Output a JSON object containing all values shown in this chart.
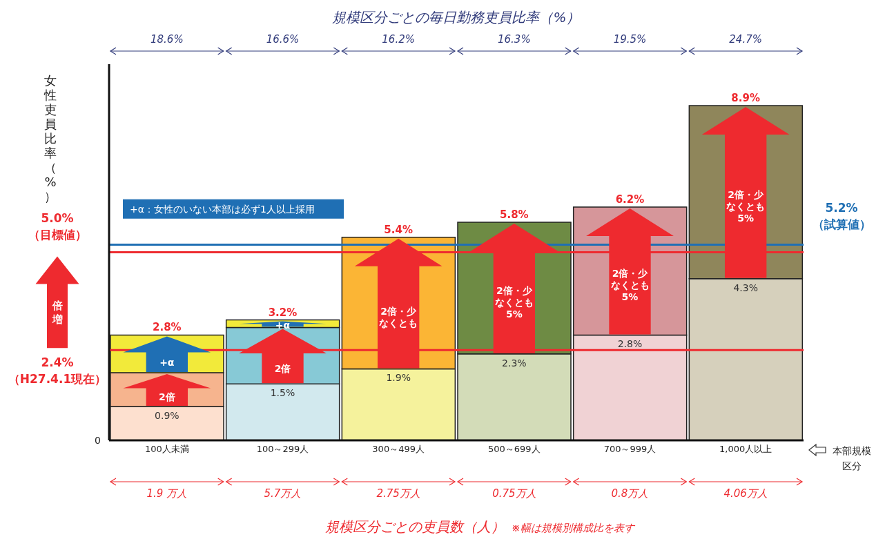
{
  "chart_data": {
    "type": "bar",
    "stacked": true,
    "title": "規模区分ごとの毎日勤務吏員比率（%）",
    "xlabel": "規模区分ごとの吏員数（人）",
    "ylabel": "女性吏員比率（%）",
    "categories": [
      "100人未満",
      "100～299人",
      "300～499人",
      "500～699人",
      "700～999人",
      "1,000人以上"
    ],
    "series": [
      {
        "type": "bar",
        "colors": [
          "#fde0cf",
          "#d2e9ee",
          "#f5f29c",
          "#d3dcb8",
          "#f0d2d4",
          "#d6d0bc"
        ],
        "values": [
          0.9,
          1.5,
          1.9,
          2.3,
          2.8,
          4.3
        ],
        "value_labels": [
          "0.9%",
          "1.5%",
          "1.9%",
          "2.3%",
          "2.8%",
          "4.3%"
        ]
      },
      {
        "type": "bar",
        "colors": [
          "#f6b48e",
          "#87c9d6",
          "#fbb535",
          "#6e8b44",
          "#d6969a",
          "#8f865b"
        ],
        "values": [
          0.9,
          1.5,
          3.5,
          3.5,
          3.4,
          4.6
        ]
      },
      {
        "type": "bar",
        "colors": [
          "#f2ea3a",
          "#f2ea3a",
          null,
          null,
          null,
          null
        ],
        "values": [
          1.0,
          0.2,
          null,
          null,
          null,
          null
        ]
      }
    ],
    "totals": [
      "2.8%",
      "3.2%",
      "5.4%",
      "5.8%",
      "6.2%",
      "8.9%"
    ],
    "ylim": [
      0,
      10
    ],
    "grid": false,
    "legend": false,
    "ref_lines": [
      {
        "axis": "y",
        "value": 5.0,
        "label": "5.0%（目標値）",
        "color": "#ee2a2f"
      },
      {
        "axis": "y",
        "value": 2.4,
        "label": "2.4%（H27.4.1現在）",
        "color": "#ee2a2f"
      },
      {
        "axis": "y",
        "value": 5.2,
        "label": "5.2%（試算値）",
        "color": "#1f6fb4"
      }
    ],
    "annotations": [
      "+α：女性のいない本部は必ず1人以上採用",
      "倍増",
      "本部規模区分",
      "※幅は規模別構成比を表す",
      "0",
      "18.6%",
      "16.6%",
      "16.2%",
      "16.3%",
      "19.5%",
      "24.7%",
      "1.9 万人",
      "5.7万人",
      "2.75万人",
      "0.75万人",
      "0.8万人",
      "4.06万人",
      "2倍",
      "+α",
      "2倍",
      "+α",
      "2倍・少なくとも",
      "2倍・少なくとも5%",
      "2倍・少なくとも5%",
      "2倍・少なくとも5%"
    ]
  }
}
